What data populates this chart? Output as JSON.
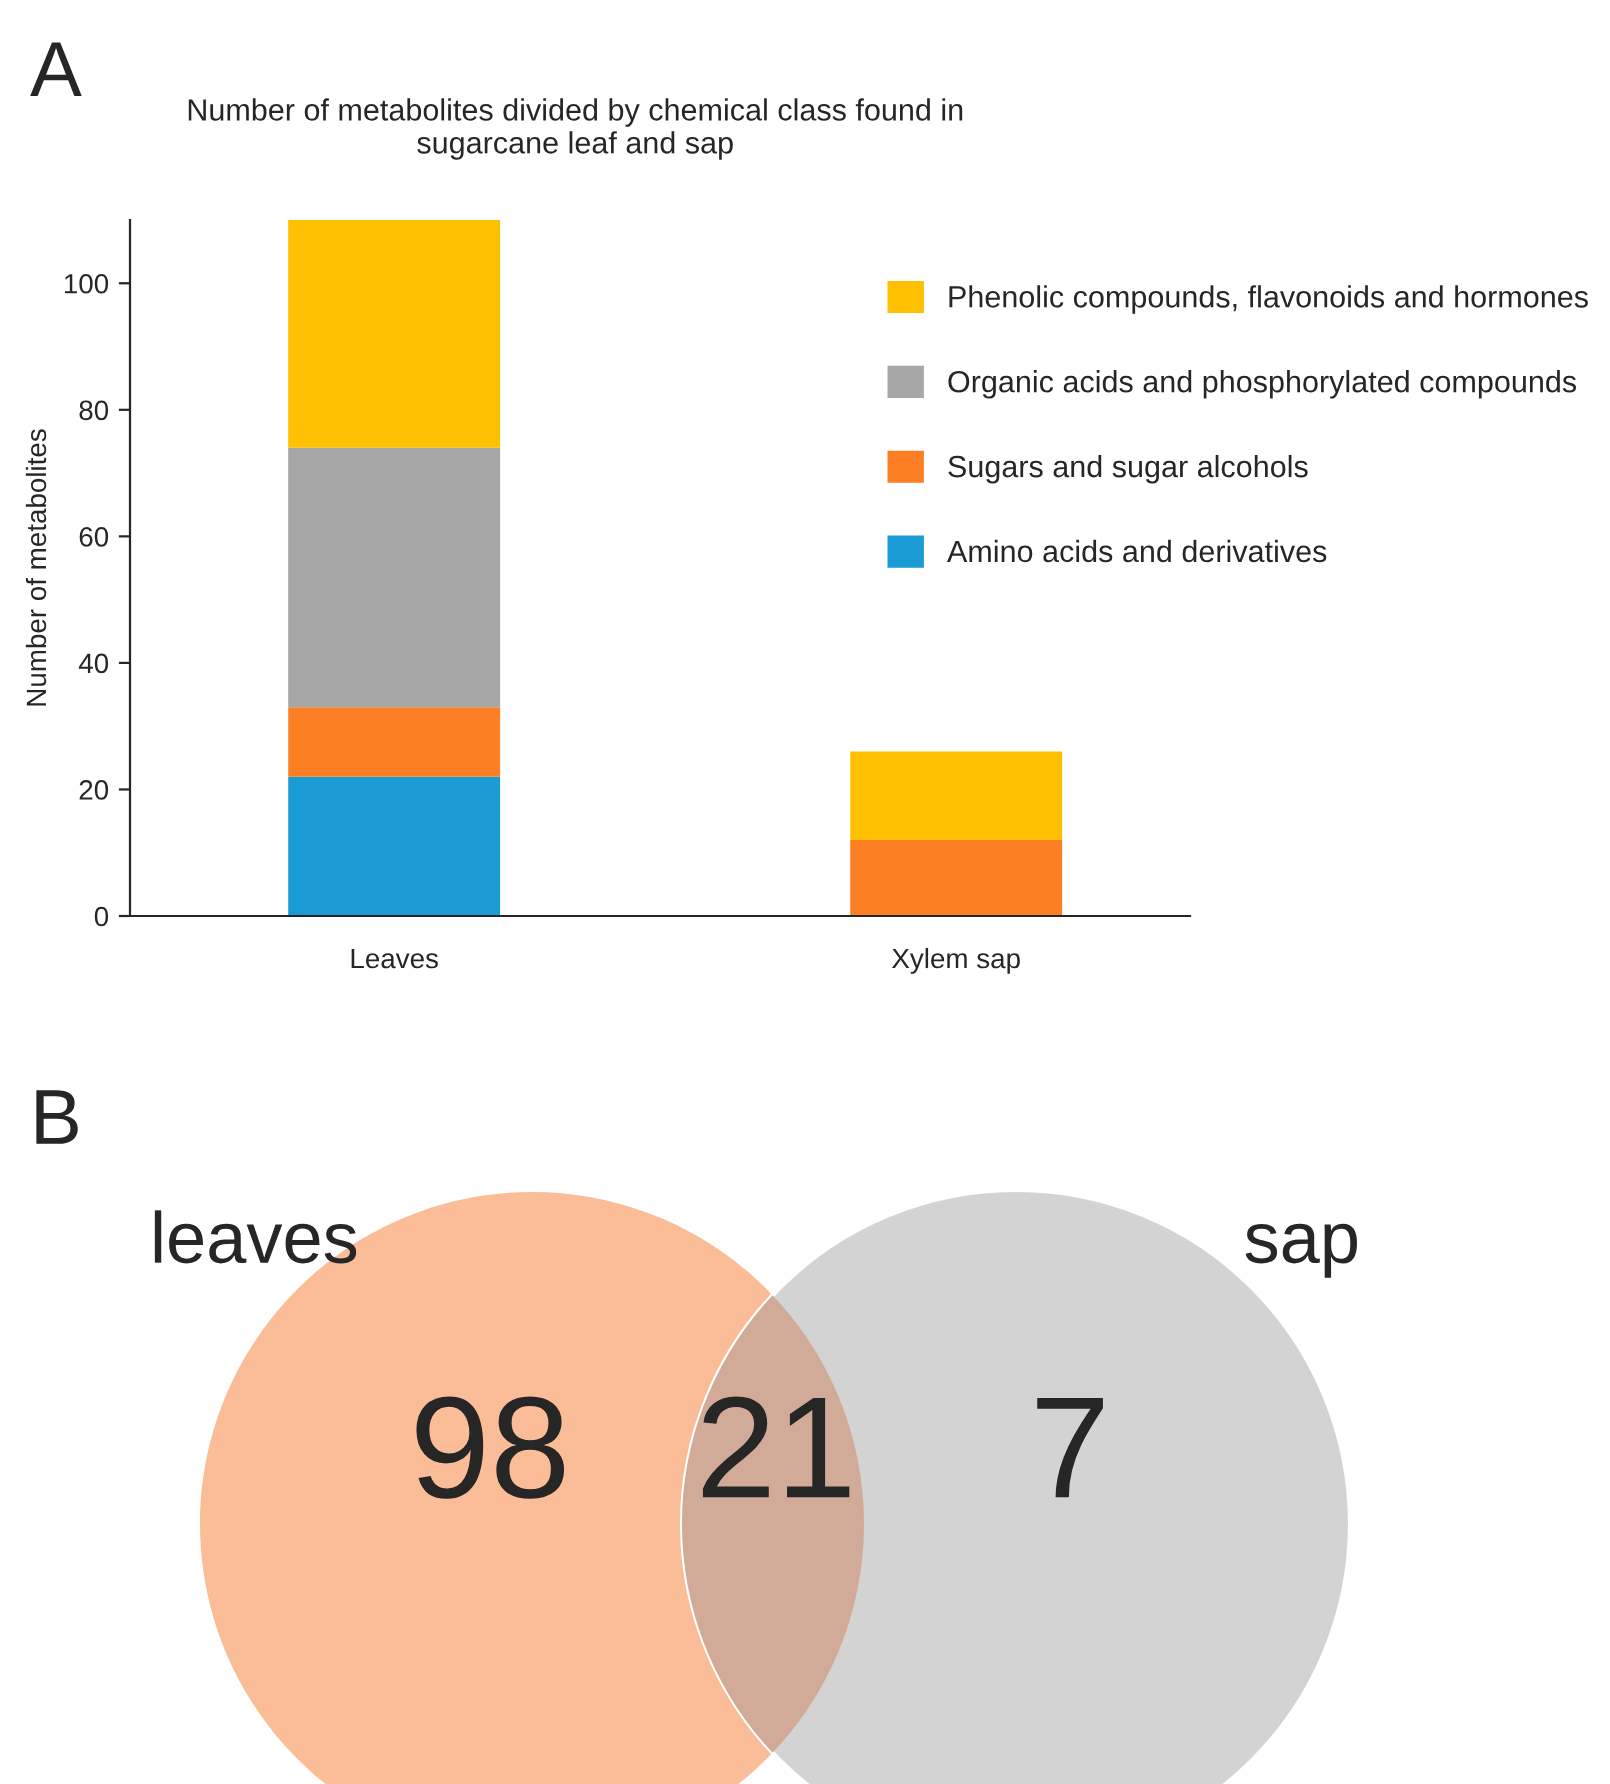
{
  "chart_data": [
    {
      "type": "bar",
      "title": "Number of metabolites divided by chemical class found in\nsugarcane leaf and sap",
      "ylabel": "Number of metabolites",
      "annotations": [
        "A"
      ],
      "categories": [
        "Leaves",
        "Xylem sap"
      ],
      "stacked": true,
      "ylim": [
        0,
        110
      ],
      "yticks": [
        0,
        20,
        40,
        60,
        80,
        100
      ],
      "grid": false,
      "legend": "right",
      "series": [
        {
          "name": "Amino acids and derivatives",
          "color": "#1a9bd5",
          "values": [
            22,
            0
          ]
        },
        {
          "name": "Sugars and sugar alcohols",
          "color": "#fd7f23",
          "values": [
            11,
            12
          ]
        },
        {
          "name": "Organic acids and phosphorylated compounds",
          "color": "#a6a6a6",
          "values": [
            41,
            0
          ]
        },
        {
          "name": "Phenolic compounds, flavonoids and hormones",
          "color": "#fec000",
          "values": [
            36,
            14
          ]
        }
      ]
    },
    {
      "type": "other",
      "annotations": [
        "B",
        "leaves",
        "sap"
      ],
      "categories": [
        null,
        null,
        null
      ],
      "values": [
        98,
        21,
        7
      ],
      "colors": [
        "#fbbc98",
        "#d2aa98",
        "#d3d3d3"
      ],
      "data_labels": true
    }
  ]
}
